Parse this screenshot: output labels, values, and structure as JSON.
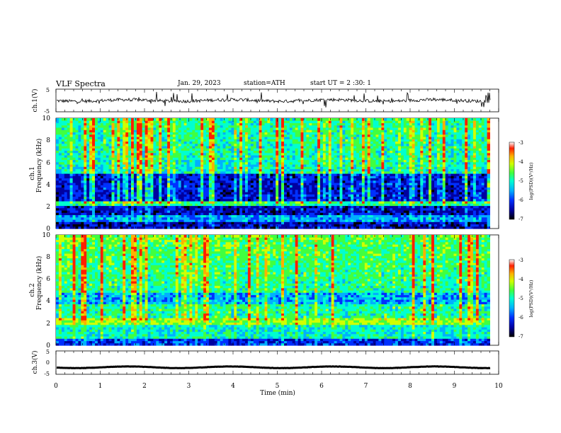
{
  "header": {
    "title": "VLF  Spectra",
    "date": "Jan.  29,  2023",
    "station": "station=ATH",
    "start": "start  UT  =   2  :30:  1"
  },
  "chart_data": [
    {
      "type": "line",
      "panel": "ch1-waveform",
      "ylabel": "ch.1(V)",
      "ylim": [
        -5,
        5
      ],
      "yticks": [
        "5",
        "-5"
      ],
      "xlim": [
        0,
        10
      ],
      "approx_level": 0,
      "color": "#000000"
    },
    {
      "type": "heatmap",
      "panel": "ch1-spectrogram",
      "ylabel_top": "ch.1",
      "ylabel": "Frequency  (kHz)",
      "ylim": [
        0,
        10
      ],
      "yticks": [
        "0",
        "2",
        "4",
        "6",
        "8",
        "10"
      ],
      "xlim": [
        0,
        9.8
      ],
      "colorbar": {
        "label": "log(PSD)(V²/Hz)",
        "range": [
          -7,
          -3
        ],
        "ticks": [
          "-3",
          "-4",
          "-5",
          "-6",
          "-7"
        ]
      }
    },
    {
      "type": "heatmap",
      "panel": "ch2-spectrogram",
      "ylabel_top": "ch.2",
      "ylabel": "Frequency  (kHz)",
      "ylim": [
        0,
        10
      ],
      "yticks": [
        "0",
        "2",
        "4",
        "6",
        "8",
        "10"
      ],
      "xlim": [
        0,
        9.8
      ],
      "colorbar": {
        "label": "log(PSD)(V²/Hz)",
        "range": [
          -7,
          -3
        ],
        "ticks": [
          "-3",
          "-4",
          "-5",
          "-6",
          "-7"
        ]
      }
    },
    {
      "type": "line",
      "panel": "ch3-waveform",
      "ylabel": "ch.3(V)",
      "ylim": [
        -5,
        5
      ],
      "yticks": [
        "5",
        "0",
        "-5"
      ],
      "xlim": [
        0,
        10
      ],
      "approx_level": -2,
      "color": "#000000"
    }
  ],
  "xaxis": {
    "label": "Time  (min)",
    "ticks": [
      "0",
      "1",
      "2",
      "3",
      "4",
      "5",
      "6",
      "7",
      "8",
      "9",
      "10"
    ],
    "range": [
      0,
      10
    ]
  },
  "colors": {
    "colormap": [
      "#000000",
      "#0000a0",
      "#0030ff",
      "#00b0ff",
      "#00ffd0",
      "#40ff40",
      "#d0ff00",
      "#ffb000",
      "#ff2000",
      "#ffffff"
    ]
  }
}
